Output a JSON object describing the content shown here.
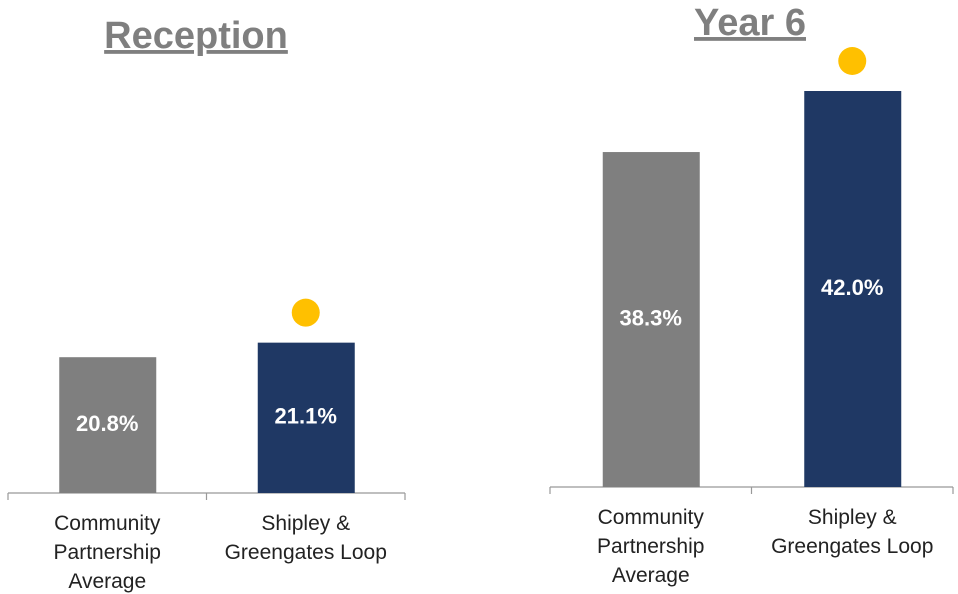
{
  "chart_data": [
    {
      "type": "bar",
      "title": "Reception",
      "categories": [
        "Community Partnership Average",
        "Shipley & Greengates Loop"
      ],
      "values": [
        20.8,
        21.1
      ],
      "value_labels": [
        "20.8%",
        "21.1%"
      ],
      "colors": [
        "#7f7f7f",
        "#1f3864"
      ],
      "ylim": [
        18,
        22
      ]
    },
    {
      "type": "bar",
      "title": "Year 6",
      "categories": [
        "Community Partnership Average",
        "Shipley & Greengates Loop"
      ],
      "values": [
        38.3,
        42.0
      ],
      "value_labels": [
        "38.3%",
        "42.0%"
      ],
      "colors": [
        "#7f7f7f",
        "#1f3864"
      ],
      "ylim": [
        18,
        44
      ]
    }
  ]
}
